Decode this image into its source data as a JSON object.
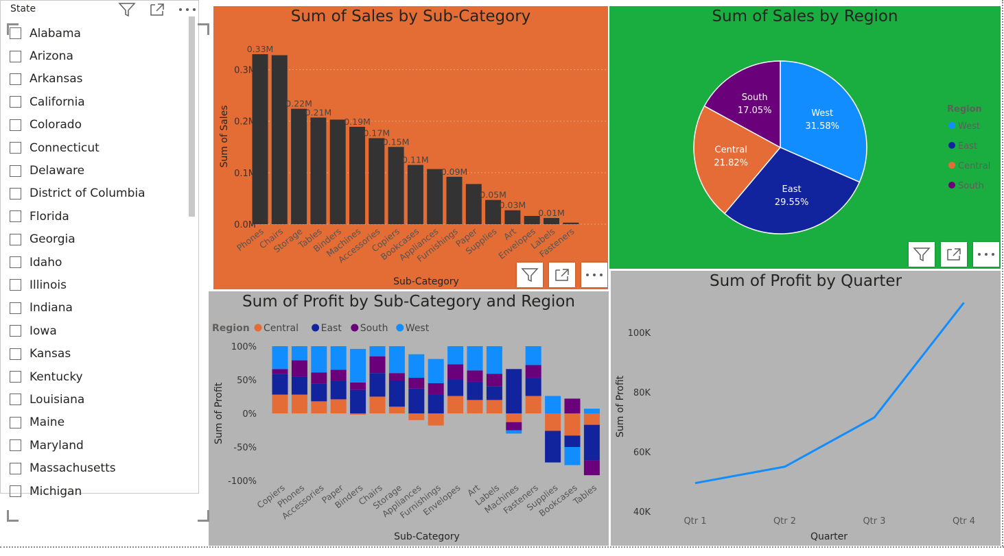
{
  "slicer": {
    "header": "State",
    "items": [
      "Alabama",
      "Arizona",
      "Arkansas",
      "California",
      "Colorado",
      "Connecticut",
      "Delaware",
      "District of Columbia",
      "Florida",
      "Georgia",
      "Idaho",
      "Illinois",
      "Indiana",
      "Iowa",
      "Kansas",
      "Kentucky",
      "Louisiana",
      "Maine",
      "Maryland",
      "Massachusetts",
      "Michigan"
    ]
  },
  "icons": {
    "filter": "filter-icon",
    "focus": "focus-mode-icon",
    "more": "more-options-icon"
  },
  "colors": {
    "orange_bg": "#e46c35",
    "green_bg": "#1aae40",
    "gray_bg": "#b4b4b4",
    "bar": "#333333",
    "central": "#e66c37",
    "east": "#12239e",
    "south": "#6b007b",
    "west": "#118dff"
  },
  "chart_data": [
    {
      "type": "bar",
      "title": "Sum of Sales by Sub-Category",
      "xlabel": "Sub-Category",
      "ylabel": "Sum of Sales",
      "categories": [
        "Phones",
        "Chairs",
        "Storage",
        "Tables",
        "Binders",
        "Machines",
        "Accessories",
        "Copiers",
        "Bookcases",
        "Appliances",
        "Furnishings",
        "Paper",
        "Supplies",
        "Art",
        "Envelopes",
        "Labels",
        "Fasteners"
      ],
      "values": [
        0.33,
        0.328,
        0.224,
        0.207,
        0.203,
        0.189,
        0.167,
        0.15,
        0.115,
        0.107,
        0.092,
        0.078,
        0.047,
        0.027,
        0.016,
        0.012,
        0.003
      ],
      "data_labels": [
        "0.33M",
        "",
        "0.22M",
        "0.21M",
        "",
        "0.19M",
        "0.17M",
        "0.15M",
        "0.11M",
        "",
        "0.09M",
        "",
        "0.05M",
        "0.03M",
        "",
        "0.01M",
        ""
      ],
      "yticks": [
        "0.0M",
        "0.1M",
        "0.2M",
        "0.3M"
      ],
      "ylim": [
        0,
        0.35
      ]
    },
    {
      "type": "pie",
      "title": "Sum of Sales by Region",
      "legend_title": "Region",
      "legend_position": "right",
      "slices": [
        {
          "name": "West",
          "value": 31.58,
          "label": "31.58%"
        },
        {
          "name": "East",
          "value": 29.55,
          "label": "29.55%"
        },
        {
          "name": "Central",
          "value": 21.82,
          "label": "21.82%"
        },
        {
          "name": "South",
          "value": 17.05,
          "label": "17.05%"
        }
      ]
    },
    {
      "type": "bar",
      "stacked": "100%",
      "title": "Sum of Profit by Sub-Category and Region",
      "xlabel": "Sub-Category",
      "ylabel": "Sum of Profit",
      "legend_title": "Region",
      "legend_position": "top-left",
      "categories": [
        "Copiers",
        "Phones",
        "Accessories",
        "Paper",
        "Binders",
        "Chairs",
        "Storage",
        "Appliances",
        "Furnishings",
        "Envelopes",
        "Art",
        "Labels",
        "Machines",
        "Fasteners",
        "Supplies",
        "Bookcases",
        "Tables"
      ],
      "series": [
        {
          "name": "Central",
          "values": [
            28,
            28,
            18,
            21,
            -2,
            25,
            10,
            -10,
            -18,
            26,
            20,
            20,
            -13,
            26,
            -26,
            -33,
            -17
          ]
        },
        {
          "name": "East",
          "values": [
            31,
            27,
            26,
            27,
            35,
            35,
            39,
            37,
            28,
            25,
            27,
            20,
            66,
            27,
            -47,
            -17,
            -53
          ]
        },
        {
          "name": "South",
          "values": [
            7,
            24,
            17,
            17,
            11,
            25,
            11,
            16,
            17,
            22,
            17,
            19,
            -12,
            19,
            0,
            22,
            -22
          ]
        },
        {
          "name": "West",
          "values": [
            34,
            21,
            39,
            35,
            50,
            15,
            40,
            35,
            36,
            27,
            36,
            41,
            -5,
            28,
            26,
            -27,
            7
          ]
        }
      ],
      "yticks": [
        "-100%",
        "-50%",
        "0%",
        "50%",
        "100%"
      ],
      "ylim": [
        -100,
        100
      ]
    },
    {
      "type": "line",
      "title": "Sum of Profit by Quarter",
      "xlabel": "Quarter",
      "ylabel": "Sum of Profit",
      "categories": [
        "Qtr 1",
        "Qtr 2",
        "Qtr 3",
        "Qtr 4"
      ],
      "values": [
        49500,
        55000,
        71500,
        110000
      ],
      "yticks": [
        "40K",
        "60K",
        "80K",
        "100K"
      ],
      "ylim": [
        40000,
        114000
      ]
    }
  ]
}
